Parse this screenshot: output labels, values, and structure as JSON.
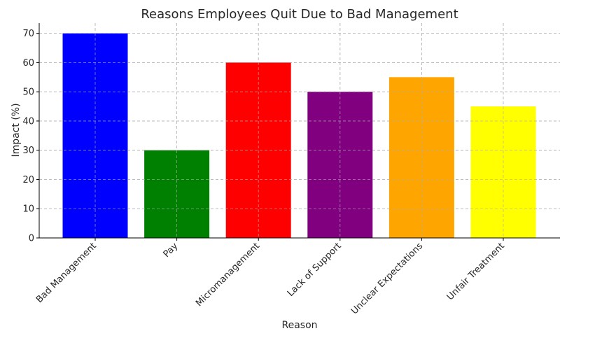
{
  "chart_data": {
    "type": "bar",
    "title": "Reasons Employees Quit Due to Bad Management",
    "xlabel": "Reason",
    "ylabel": "Impact (%)",
    "categories": [
      "Bad Management",
      "Pay",
      "Micromanagement",
      "Lack of Support",
      "Unclear Expectations",
      "Unfair Treatment"
    ],
    "values": [
      70,
      30,
      60,
      50,
      55,
      45
    ],
    "colors": [
      "#0000ff",
      "#008000",
      "#ff0000",
      "#800080",
      "#ffa500",
      "#ffff00"
    ],
    "ylim": [
      0,
      73.5
    ],
    "yticks": [
      0,
      10,
      20,
      30,
      40,
      50,
      60,
      70
    ],
    "grid": true
  }
}
